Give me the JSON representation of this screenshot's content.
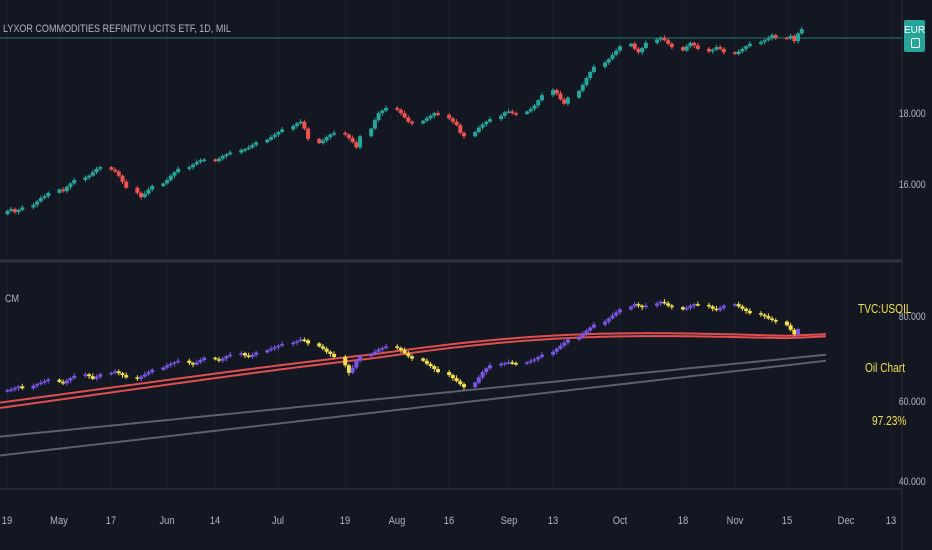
{
  "header": {
    "symbol_title": "LYXOR COMMODITIES REFINITIV UCITS ETF, 1D, MIL"
  },
  "price_tag": {
    "label": "EUR"
  },
  "indicator": {
    "label": "CM"
  },
  "legend": {
    "line1": "TVC:USOIL",
    "line2": "Oil Chart",
    "line3": "97.23%"
  },
  "colors": {
    "background": "#131722",
    "up": "#26a69a",
    "down": "#ef5350",
    "oil_up": "#7b56e6",
    "oil_down": "#f2e14c",
    "ma": "#e04f4f",
    "ma_long": "#5d606b",
    "grid": "#2a2e39",
    "text": "#b2b5be"
  },
  "chart_data": [
    {
      "type": "candlestick",
      "title": "LYXOR COMMODITIES REFINITIV UCITS ETF, 1D, MIL",
      "y_ticks": [
        "18.000",
        "16.000"
      ],
      "ylim": [
        14.6,
        19.5
      ],
      "x_range": [
        "2021-04-17",
        "2021-12-16"
      ],
      "x_ticks": [
        {
          "label": "19",
          "date": "2021-04-19"
        },
        {
          "label": "May",
          "date": "2021-05-03"
        },
        {
          "label": "17",
          "date": "2021-05-17"
        },
        {
          "label": "Jun",
          "date": "2021-06-01"
        },
        {
          "label": "14",
          "date": "2021-06-14"
        },
        {
          "label": "Jul",
          "date": "2021-07-01"
        },
        {
          "label": "19",
          "date": "2021-07-19"
        },
        {
          "label": "Aug",
          "date": "2021-08-02"
        },
        {
          "label": "16",
          "date": "2021-08-16"
        },
        {
          "label": "Sep",
          "date": "2021-09-01"
        },
        {
          "label": "13",
          "date": "2021-09-13"
        },
        {
          "label": "Oct",
          "date": "2021-10-01"
        },
        {
          "label": "18",
          "date": "2021-10-18"
        },
        {
          "label": "Nov",
          "date": "2021-11-01"
        },
        {
          "label": "15",
          "date": "2021-11-15"
        },
        {
          "label": "Dec",
          "date": "2021-12-01"
        },
        {
          "label": "13",
          "date": "2021-12-13"
        }
      ],
      "close_start": 15.2,
      "closes": [
        15.28,
        15.32,
        15.25,
        15.3,
        15.36,
        15.42,
        15.5,
        15.58,
        15.62,
        15.7,
        15.78,
        15.74,
        15.84,
        15.92,
        16.0,
        16.06,
        16.1,
        16.18,
        16.26,
        16.3,
        16.24,
        16.2,
        16.1,
        15.96,
        15.82,
        15.7,
        15.6,
        15.68,
        15.78,
        15.86,
        15.92,
        16.0,
        16.1,
        16.18,
        16.26,
        16.3,
        16.36,
        16.42,
        16.46,
        16.48,
        16.44,
        16.5,
        16.56,
        16.6,
        16.64,
        16.7,
        16.72,
        16.76,
        16.82,
        16.88,
        16.94,
        17.0,
        17.06,
        17.12,
        17.18,
        17.26,
        17.32,
        17.36,
        17.2,
        16.96,
        16.86,
        16.92,
        17.0,
        17.06,
        17.1,
        17.06,
        16.98,
        16.88,
        16.76,
        17.02,
        17.2,
        17.4,
        17.56,
        17.62,
        17.68,
        17.64,
        17.56,
        17.46,
        17.36,
        17.32,
        17.38,
        17.44,
        17.5,
        17.56,
        17.52,
        17.44,
        17.36,
        17.28,
        17.1,
        17.02,
        17.12,
        17.22,
        17.3,
        17.36,
        17.42,
        17.5,
        17.58,
        17.6,
        17.56,
        17.54,
        17.6,
        17.66,
        17.74,
        17.86,
        17.98,
        18.1,
        18.02,
        17.88,
        17.78,
        17.92,
        18.08,
        18.22,
        18.38,
        18.52,
        18.64,
        18.74,
        18.82,
        18.92,
        19.02,
        19.12,
        19.18,
        19.06,
        18.98,
        19.08,
        19.2,
        19.28,
        19.32,
        19.26,
        19.18,
        19.1,
        19.02,
        19.12,
        19.2,
        19.14,
        19.06,
        19.0,
        19.04,
        19.1,
        19.06,
        18.98,
        18.94,
        19.0,
        19.06,
        19.12,
        19.18,
        19.22,
        19.26,
        19.3,
        19.38,
        19.32,
        19.3,
        19.36,
        19.24,
        19.42,
        19.52
      ]
    },
    {
      "type": "candlestick-overlay",
      "name": "TVC:USOIL",
      "title": "CM",
      "y_ticks": [
        "80.000",
        "60.000",
        "40.000"
      ],
      "ylim": [
        38,
        91
      ],
      "close_start": 61.5,
      "closes": [
        61.8,
        62.0,
        62.4,
        62.8,
        62.3,
        63.0,
        63.4,
        63.8,
        64.2,
        64.6,
        64.0,
        63.6,
        64.4,
        65.0,
        65.6,
        66.0,
        65.5,
        64.8,
        65.4,
        66.0,
        66.4,
        66.8,
        66.3,
        65.8,
        65.2,
        64.8,
        65.4,
        66.0,
        66.6,
        67.2,
        67.8,
        68.4,
        68.8,
        69.2,
        69.6,
        69.0,
        68.6,
        69.2,
        69.8,
        70.4,
        70.0,
        69.6,
        70.2,
        70.8,
        71.2,
        71.6,
        71.0,
        70.6,
        71.2,
        71.8,
        72.4,
        72.8,
        73.2,
        73.6,
        74.0,
        74.4,
        74.8,
        75.2,
        75.0,
        74.2,
        73.4,
        72.8,
        72.0,
        71.4,
        70.6,
        68.4,
        66.4,
        67.8,
        69.6,
        70.8,
        71.4,
        72.0,
        72.6,
        73.0,
        73.4,
        73.0,
        72.4,
        71.6,
        70.8,
        70.2,
        69.6,
        68.8,
        68.2,
        67.4,
        66.6,
        65.8,
        65.0,
        64.2,
        63.4,
        62.6,
        63.8,
        65.2,
        66.6,
        67.6,
        68.4,
        68.8,
        69.0,
        69.2,
        69.0,
        68.8,
        69.2,
        69.6,
        70.0,
        70.6,
        71.2,
        72.0,
        72.8,
        73.6,
        74.4,
        75.2,
        76.0,
        76.8,
        77.6,
        78.4,
        79.2,
        80.0,
        80.8,
        81.6,
        82.4,
        83.2,
        84.0,
        84.6,
        84.2,
        83.8,
        84.2,
        84.8,
        85.2,
        84.8,
        84.2,
        83.8,
        83.2,
        83.6,
        84.2,
        84.6,
        84.4,
        84.0,
        83.4,
        83.0,
        83.6,
        84.2,
        84.6,
        84.0,
        83.4,
        82.8,
        82.2,
        81.8,
        81.4,
        80.8,
        80.4,
        80.0,
        79.0,
        77.8,
        76.6,
        78.0
      ],
      "ma_short_start": 58.5,
      "ma_short_end": 77.6,
      "ma_long_start": 49.5,
      "ma_long_end": 71.2
    }
  ]
}
